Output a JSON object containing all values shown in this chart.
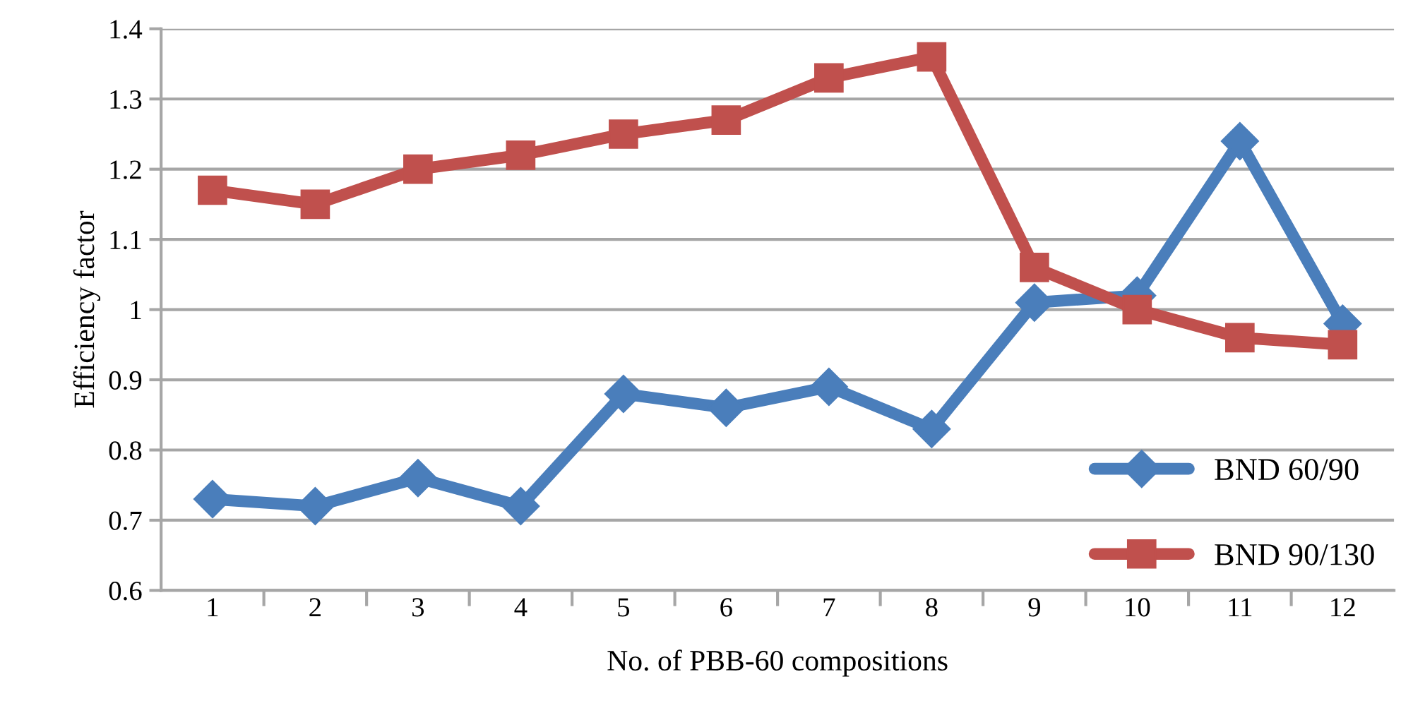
{
  "chart_data": {
    "type": "line",
    "xlabel": "No. of PBB-60 compositions",
    "ylabel": "Efficiency factor",
    "categories": [
      "1",
      "2",
      "3",
      "4",
      "5",
      "6",
      "7",
      "8",
      "9",
      "10",
      "11",
      "12"
    ],
    "series": [
      {
        "name": "BND 60/90",
        "color": "#4a7ebb",
        "marker": "diamond",
        "values": [
          0.73,
          0.72,
          0.76,
          0.72,
          0.88,
          0.86,
          0.89,
          0.83,
          1.01,
          1.02,
          1.24,
          0.98
        ]
      },
      {
        "name": "BND 90/130",
        "color": "#c0504d",
        "marker": "square",
        "values": [
          1.17,
          1.15,
          1.2,
          1.22,
          1.25,
          1.27,
          1.33,
          1.36,
          1.06,
          1.0,
          0.96,
          0.95
        ]
      }
    ],
    "ylim": [
      0.6,
      1.4
    ],
    "yticks": [
      0.6,
      0.7,
      0.8,
      0.9,
      1,
      1.1,
      1.2,
      1.3,
      1.4
    ],
    "grid": "y",
    "legend": "bottom right",
    "line_style": "solid"
  }
}
